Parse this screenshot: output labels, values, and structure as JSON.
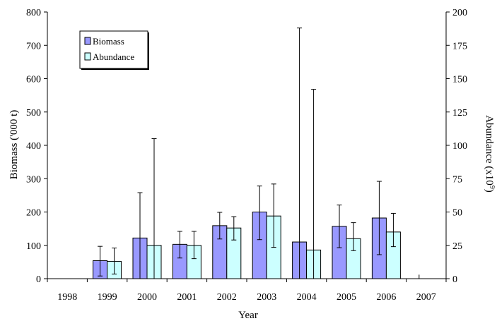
{
  "chart_data": {
    "type": "bar",
    "title": "",
    "xlabel": "Year",
    "ylabel": "Biomass ('000 t)",
    "y2label": "Abundance (x10",
    "y2label_exponent": "9",
    "y2label_suffix": ")",
    "categories": [
      "1998",
      "1999",
      "2000",
      "2001",
      "2002",
      "2003",
      "2004",
      "2005",
      "2006",
      "2007"
    ],
    "ylim": [
      0,
      800
    ],
    "yticks": [
      0,
      100,
      200,
      300,
      400,
      500,
      600,
      700,
      800
    ],
    "y2lim": [
      0,
      200
    ],
    "y2ticks": [
      0,
      25,
      50,
      75,
      100,
      125,
      150,
      175,
      200
    ],
    "legend_position": "top-left",
    "grid": false,
    "series": [
      {
        "name": "Biomass",
        "axis": "left",
        "color": "#9999ff",
        "values": [
          null,
          54,
          122,
          103,
          159,
          200,
          110,
          157,
          182,
          null
        ],
        "error_low": [
          null,
          8,
          0,
          62,
          119,
          117,
          0,
          93,
          72,
          null
        ],
        "error_high": [
          null,
          97,
          258,
          142,
          199,
          278,
          752,
          221,
          292,
          null
        ]
      },
      {
        "name": "Abundance",
        "axis": "right",
        "color": "#ccffff",
        "values": [
          null,
          13,
          25,
          25,
          38,
          47,
          21.5,
          30,
          35,
          null
        ],
        "error_low": [
          null,
          3.5,
          0,
          15,
          29,
          23.5,
          0,
          21,
          24,
          null
        ],
        "error_high": [
          null,
          23,
          105,
          35.5,
          46.5,
          71,
          142,
          42,
          49,
          null
        ]
      }
    ],
    "annotations": [
      {
        "category": "2007",
        "value": 12,
        "axis": "left",
        "kind": "error-stub"
      }
    ]
  }
}
